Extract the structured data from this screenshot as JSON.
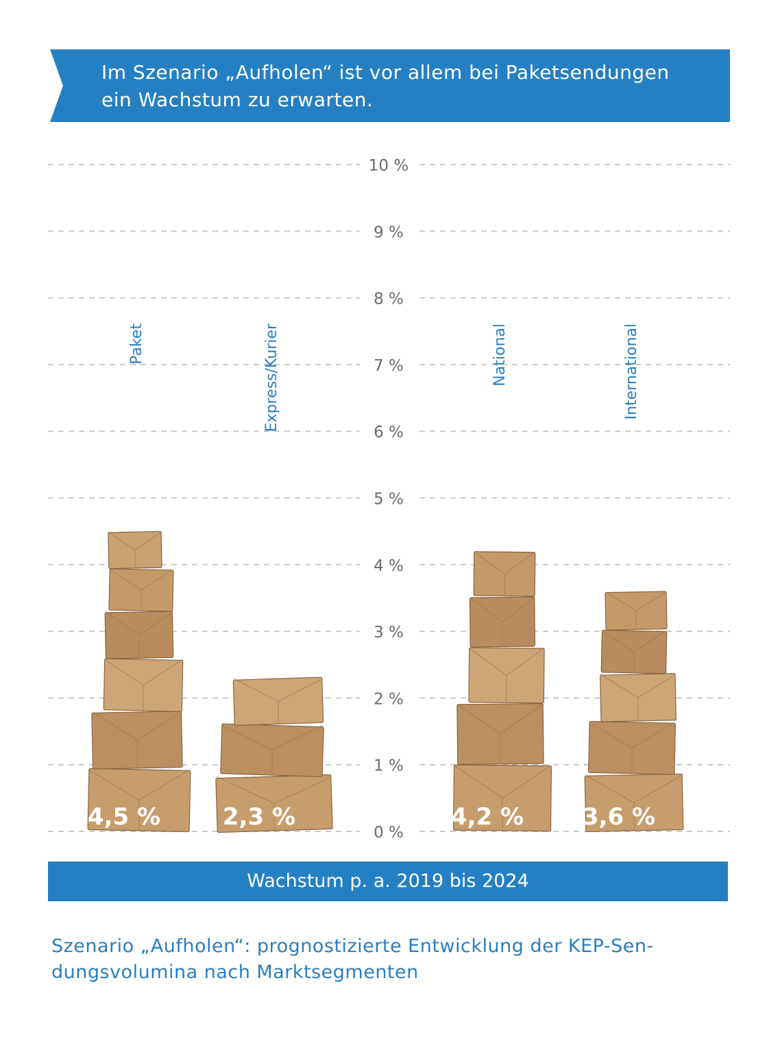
{
  "header": {
    "line1": "Im Szenario „Aufholen“ ist vor allem bei Paketsendungen",
    "line2": "ein Wachstum zu erwarten."
  },
  "footer_label": "Wachstum p. a. 2019 bis 2024",
  "caption": {
    "line1": "Szenario „Aufholen“: prognostizierte Entwicklung der KEP-Sen-",
    "line2": "dungsvolumina nach Marktsegmenten"
  },
  "colors": {
    "brand_blue": "#2580c3",
    "box": "#c49a6c",
    "gridline": "#c8c8c8",
    "tick_text": "#6b6b6b"
  },
  "chart_data": {
    "type": "bar",
    "categories": [
      "Paket",
      "Express/Kurier",
      "National",
      "International"
    ],
    "values": [
      4.5,
      2.3,
      4.2,
      3.6
    ],
    "value_labels": [
      "4,5 %",
      "2,3 %",
      "4,2 %",
      "3,6 %"
    ],
    "ylim": [
      0,
      10
    ],
    "y_ticks": [
      "0 %",
      "1 %",
      "2 %",
      "3 %",
      "4 %",
      "5 %",
      "6 %",
      "7 %",
      "8 %",
      "9 %",
      "10 %"
    ],
    "grid": true,
    "bar_style": "stacked parcel boxes"
  }
}
